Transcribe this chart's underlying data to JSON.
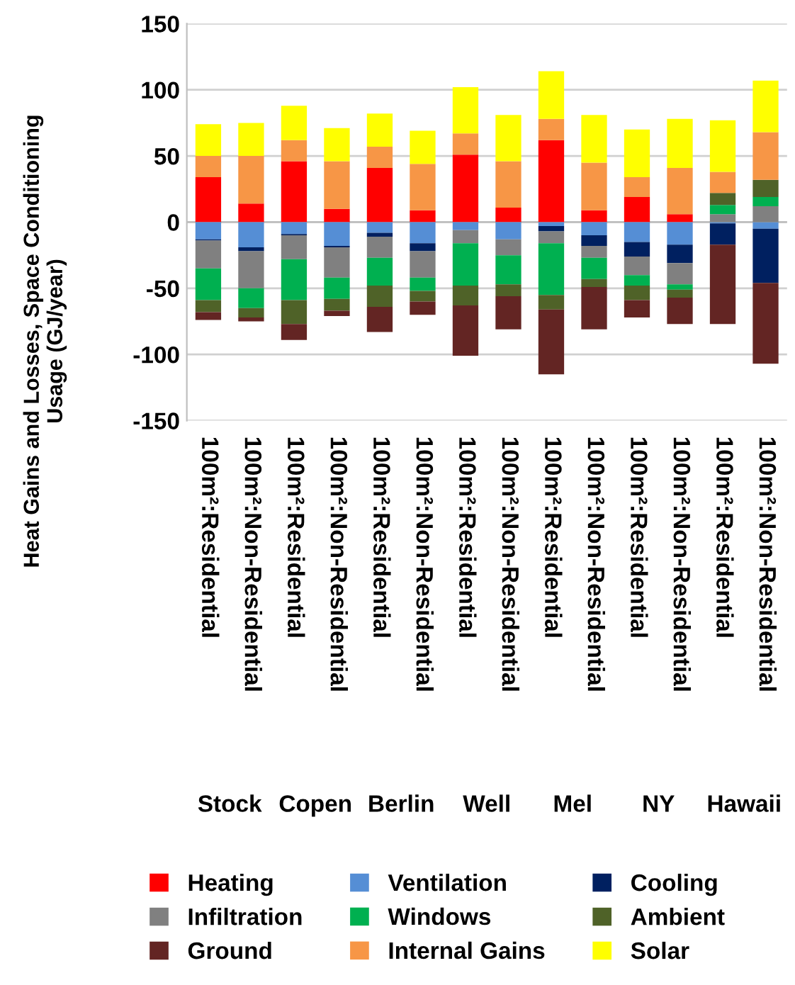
{
  "chart_data": {
    "type": "bar",
    "stacked": true,
    "ylabel": "Heat Gains and Losses, Space Conditioning\nUsage (GJ/year)",
    "categories": [
      "100m²:Residential",
      "100m²:Non-Residential",
      "100m²:Residential",
      "100m²:Non-Residential",
      "100m²:Residential",
      "100m²:Non-Residential",
      "100m²:Residential",
      "100m²:Non-Residential",
      "100m²:Residential",
      "100m²:Non-Residential",
      "100m²:Residential",
      "100m²:Non-Residential",
      "100m²:Residential",
      "100m²:Non-Residential"
    ],
    "annotations": [
      "Stock",
      "Copen",
      "Berlin",
      "Well",
      "Mel",
      "NY",
      "Hawaii"
    ],
    "series": [
      {
        "name": "Heating",
        "color": "#ff0000",
        "values": [
          34,
          14,
          46,
          10,
          41,
          9,
          51,
          11,
          62,
          9,
          19,
          6,
          0,
          0
        ]
      },
      {
        "name": "Ventilation",
        "color": "#558ed5",
        "values": [
          -13,
          -19,
          -9,
          -18,
          -8,
          -16,
          -6,
          -13,
          -3,
          -10,
          -15,
          -17,
          -1,
          -5
        ]
      },
      {
        "name": "Cooling",
        "color": "#002060",
        "values": [
          -1,
          -3,
          -1,
          -1,
          -3,
          -6,
          0,
          0,
          -4,
          -8,
          -11,
          -14,
          -16,
          -41
        ]
      },
      {
        "name": "Infiltration",
        "color": "#808080",
        "values": [
          -21,
          -28,
          -18,
          -23,
          -16,
          -20,
          -10,
          -12,
          -9,
          -9,
          -14,
          -16,
          6,
          12
        ]
      },
      {
        "name": "Windows",
        "color": "#00b050",
        "values": [
          -24,
          -15,
          -31,
          -16,
          -21,
          -10,
          -32,
          -22,
          -39,
          -16,
          -8,
          -4,
          7,
          7
        ]
      },
      {
        "name": "Ambient",
        "color": "#4f6228",
        "values": [
          -9,
          -7,
          -18,
          -9,
          -16,
          -8,
          -15,
          -9,
          -11,
          -6,
          -11,
          -6,
          9,
          13
        ]
      },
      {
        "name": "Ground",
        "color": "#632523",
        "values": [
          -6,
          -3,
          -12,
          -4,
          -19,
          -10,
          -38,
          -25,
          -49,
          -32,
          -13,
          -20,
          -60,
          -61
        ]
      },
      {
        "name": "Internal Gains",
        "color": "#f79646",
        "values": [
          16,
          36,
          16,
          36,
          16,
          35,
          16,
          35,
          16,
          36,
          15,
          35,
          16,
          36
        ]
      },
      {
        "name": "Solar",
        "color": "#ffff00",
        "values": [
          24,
          25,
          26,
          25,
          25,
          25,
          35,
          35,
          36,
          36,
          36,
          37,
          39,
          39
        ]
      }
    ],
    "ylim": [
      -150,
      150
    ],
    "yticks": [
      -150,
      -100,
      -50,
      0,
      50,
      100,
      150
    ],
    "grid": "y",
    "legend": "bottom"
  }
}
